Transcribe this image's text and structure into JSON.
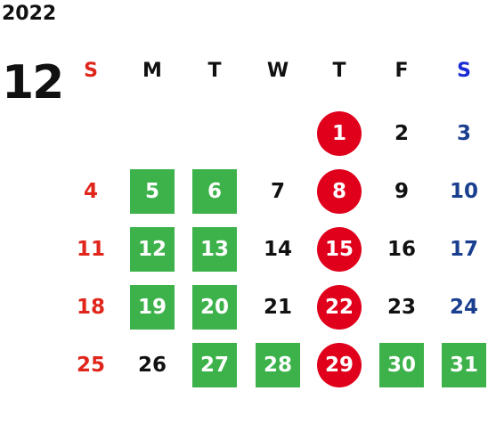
{
  "calendar": {
    "year": "2022",
    "month": "12",
    "weekdays": [
      "S",
      "M",
      "T",
      "W",
      "T",
      "F",
      "S"
    ],
    "colors": {
      "sunday": "#e0251b",
      "saturday": "#1a3f8f",
      "saturday_header": "#1a2bd6",
      "green_highlight": "#3db24a",
      "red_highlight": "#e0001b",
      "text": "#111111"
    },
    "weeks": [
      [
        null,
        null,
        null,
        null,
        {
          "day": "1",
          "mark": "red"
        },
        {
          "day": "2"
        },
        {
          "day": "3"
        }
      ],
      [
        {
          "day": "4"
        },
        {
          "day": "5",
          "mark": "green"
        },
        {
          "day": "6",
          "mark": "green"
        },
        {
          "day": "7"
        },
        {
          "day": "8",
          "mark": "red"
        },
        {
          "day": "9"
        },
        {
          "day": "10"
        }
      ],
      [
        {
          "day": "11"
        },
        {
          "day": "12",
          "mark": "green"
        },
        {
          "day": "13",
          "mark": "green"
        },
        {
          "day": "14"
        },
        {
          "day": "15",
          "mark": "red"
        },
        {
          "day": "16"
        },
        {
          "day": "17"
        }
      ],
      [
        {
          "day": "18"
        },
        {
          "day": "19",
          "mark": "green"
        },
        {
          "day": "20",
          "mark": "green"
        },
        {
          "day": "21"
        },
        {
          "day": "22",
          "mark": "red"
        },
        {
          "day": "23"
        },
        {
          "day": "24"
        }
      ],
      [
        {
          "day": "25"
        },
        {
          "day": "26"
        },
        {
          "day": "27",
          "mark": "green"
        },
        {
          "day": "28",
          "mark": "green"
        },
        {
          "day": "29",
          "mark": "red"
        },
        {
          "day": "30",
          "mark": "green"
        },
        {
          "day": "31",
          "mark": "green"
        }
      ]
    ]
  }
}
